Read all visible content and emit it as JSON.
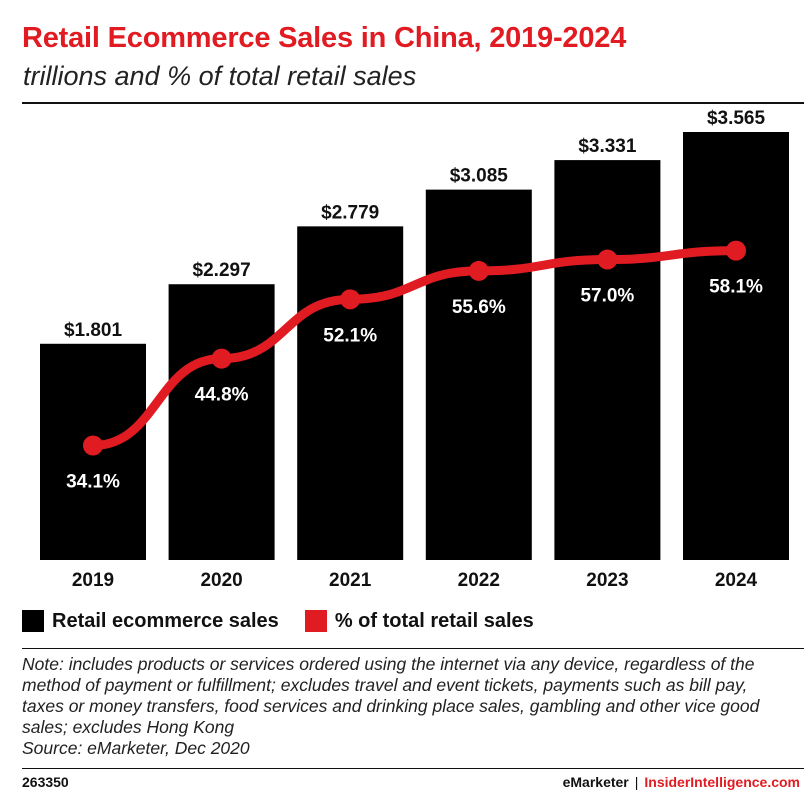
{
  "header": {
    "title": "Retail Ecommerce Sales in China, 2019-2024",
    "subtitle": "trillions and % of total retail sales"
  },
  "chart_data": {
    "type": "bar",
    "categories": [
      "2019",
      "2020",
      "2021",
      "2022",
      "2023",
      "2024"
    ],
    "series": [
      {
        "name": "Retail ecommerce sales",
        "kind": "bar",
        "values": [
          1.801,
          2.297,
          2.779,
          3.085,
          3.331,
          3.565
        ],
        "labels": [
          "$1.801",
          "$2.297",
          "$2.779",
          "$3.085",
          "$3.331",
          "$3.565"
        ],
        "color": "#000000"
      },
      {
        "name": "% of total retail sales",
        "kind": "line",
        "values": [
          34.1,
          44.8,
          52.1,
          55.6,
          57.0,
          58.1
        ],
        "labels": [
          "34.1%",
          "44.8%",
          "52.1%",
          "55.6%",
          "57.0%",
          "58.1%"
        ],
        "color": "#e11b22"
      }
    ],
    "ylim": [
      0,
      3.565
    ],
    "y2lim": [
      20,
      70
    ],
    "grid": false,
    "legend": "bottom-left"
  },
  "legend": {
    "bar_label": "Retail ecommerce sales",
    "line_label": "% of total retail sales"
  },
  "footer": {
    "note": "Note: includes products or services ordered using the internet via any device, regardless of the method of payment or fulfillment; excludes travel and event tickets, payments such as bill pay, taxes or money transfers, food services and drinking place sales, gambling and other vice good sales; excludes Hong Kong",
    "source": "Source: eMarketer, Dec 2020",
    "chart_id": "263350",
    "brand_left": "eMarketer",
    "brand_sep": "|",
    "brand_right": "InsiderIntelligence.com"
  }
}
